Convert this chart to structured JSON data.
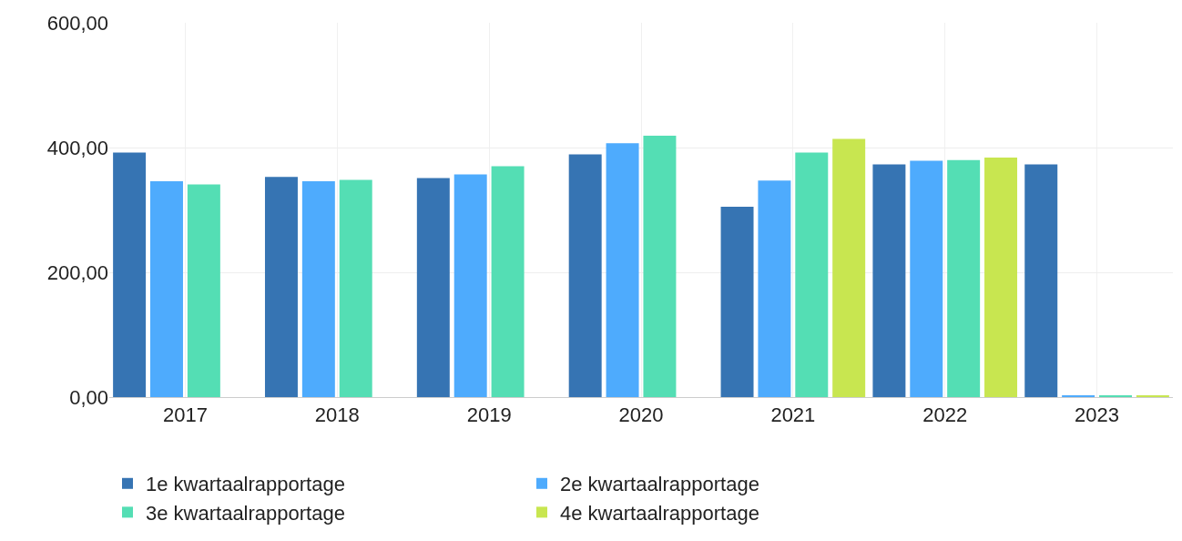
{
  "chart_data": {
    "type": "bar",
    "categories": [
      "2017",
      "2018",
      "2019",
      "2020",
      "2021",
      "2022",
      "2023"
    ],
    "series": [
      {
        "name": "1e kwartaalrapportage",
        "color": "#3674b3",
        "values": [
          392,
          353,
          351,
          389,
          305,
          373,
          373
        ]
      },
      {
        "name": "2e kwartaalrapportage",
        "color": "#4eabfd",
        "values": [
          346,
          346,
          357,
          407,
          347,
          379,
          2
        ]
      },
      {
        "name": "3e kwartaalrapportage",
        "color": "#54deb4",
        "values": [
          341,
          348,
          370,
          419,
          392,
          380,
          2
        ]
      },
      {
        "name": "4e kwartaalrapportage",
        "color": "#c8e650",
        "values": [
          null,
          null,
          null,
          null,
          414,
          384,
          2
        ]
      }
    ],
    "ylim": [
      0,
      600
    ],
    "yticks": [
      {
        "value": 0,
        "label": "0,00"
      },
      {
        "value": 200,
        "label": "200,00"
      },
      {
        "value": 400,
        "label": "400,00"
      },
      {
        "value": 600,
        "label": "600,00"
      }
    ],
    "grid": true,
    "legend": "bottom"
  }
}
